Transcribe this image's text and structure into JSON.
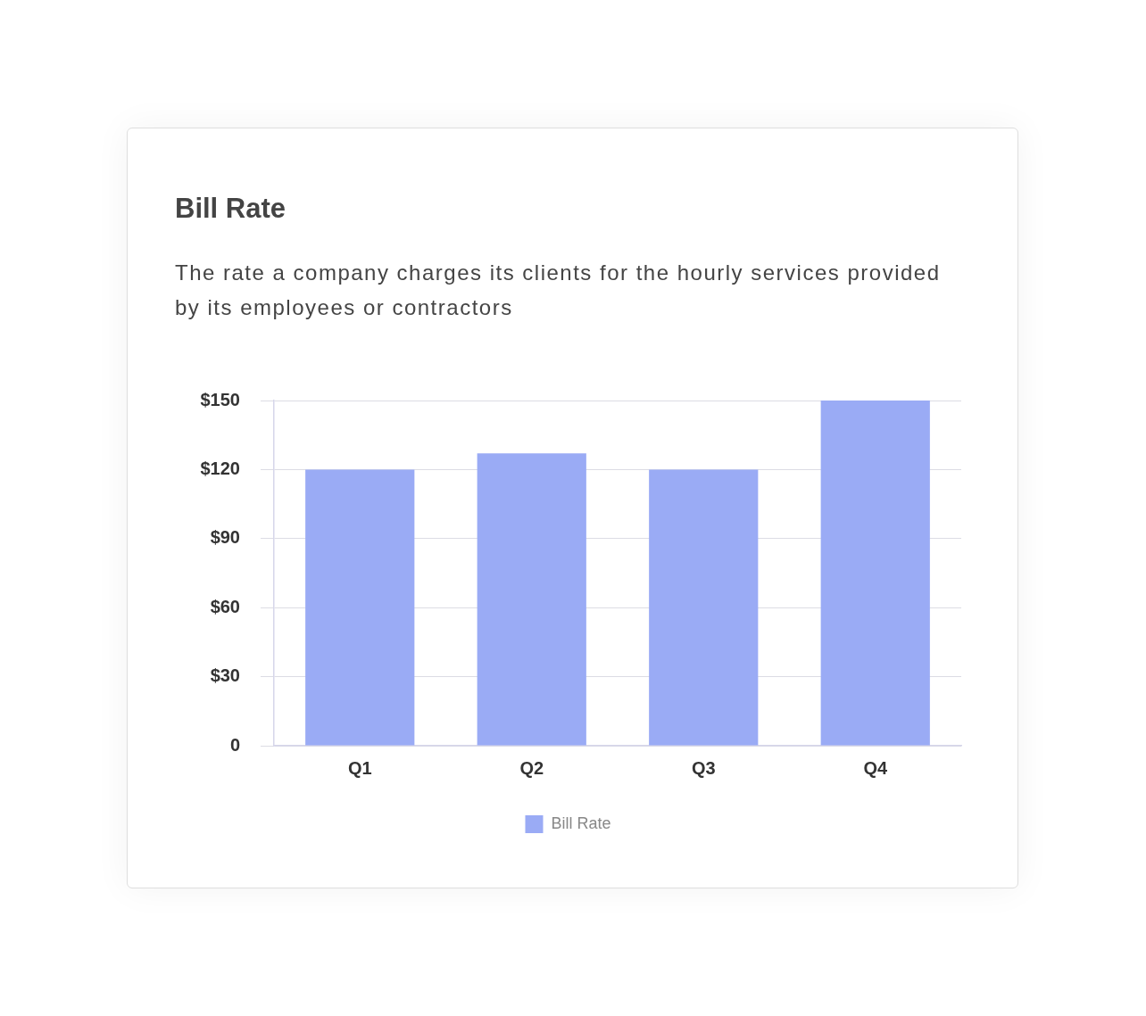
{
  "chart_data": {
    "type": "bar",
    "title": "Bill Rate",
    "subtitle": "The rate a company charges its clients for the hourly services provided by its employees or contractors",
    "categories": [
      "Q1",
      "Q2",
      "Q3",
      "Q4"
    ],
    "series": [
      {
        "name": "Bill Rate",
        "color": "#9aabf5",
        "values": [
          120,
          127,
          120,
          150
        ]
      }
    ],
    "ylim": [
      0,
      150
    ],
    "yticks": [
      0,
      {
        "value": 30,
        "label": "$30"
      },
      {
        "value": 60,
        "label": "$60"
      },
      {
        "value": 90,
        "label": "$90"
      },
      {
        "value": 120,
        "label": "$120"
      },
      {
        "value": 150,
        "label": "$150"
      }
    ],
    "grid": "y",
    "legend": "bottom"
  }
}
